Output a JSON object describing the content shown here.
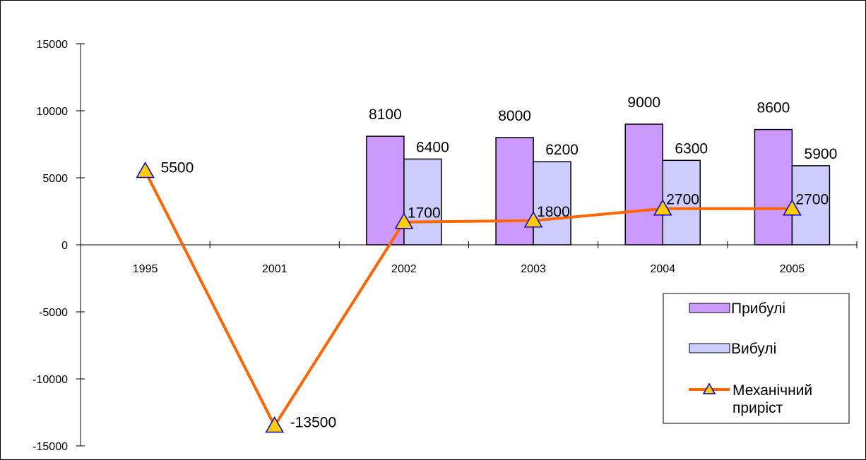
{
  "chart_data": {
    "type": "bar",
    "categories": [
      "1995",
      "2001",
      "2002",
      "2003",
      "2004",
      "2005"
    ],
    "ylim": [
      -15000,
      15000
    ],
    "yticks": [
      15000,
      10000,
      5000,
      0,
      -5000,
      -10000,
      -15000
    ],
    "ytick_labels": [
      "15000",
      "10000",
      "5000",
      "0",
      "-5000",
      "-10000",
      "-15000"
    ],
    "grid": false,
    "legend_position": "right",
    "series": [
      {
        "name": "Прибулі",
        "kind": "bar",
        "color": "#cc99ff",
        "values": [
          null,
          null,
          8100,
          8000,
          9000,
          8600
        ],
        "labels": [
          "",
          "",
          "8100",
          "8000",
          "9000",
          "8600"
        ]
      },
      {
        "name": "Вибулі",
        "kind": "bar",
        "color": "#ccccff",
        "values": [
          null,
          null,
          6400,
          6200,
          6300,
          5900
        ],
        "labels": [
          "",
          "",
          "6400",
          "6200",
          "6300",
          "5900"
        ]
      },
      {
        "name_line1": "Механічний",
        "name_line2": "приріст",
        "kind": "line",
        "color": "#ff6600",
        "marker_color": "#ffcc00",
        "marker_edge": "#0000cc",
        "values": [
          5500,
          -13500,
          1700,
          1800,
          2700,
          2700
        ],
        "labels": [
          "5500",
          "-13500",
          "1700",
          "1800",
          "2700",
          "2700"
        ]
      }
    ]
  }
}
